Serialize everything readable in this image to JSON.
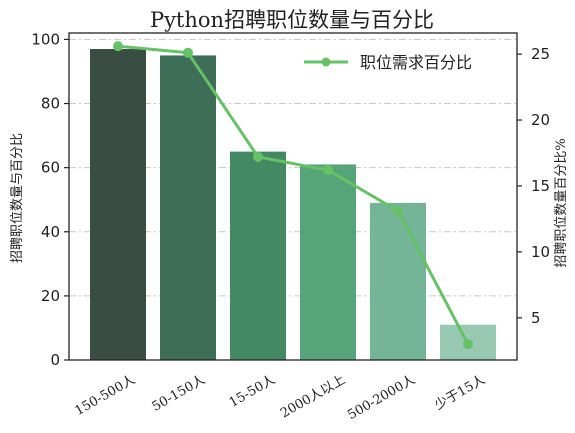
{
  "chart_data": {
    "type": "bar",
    "title": "Python招聘职位数量与百分比",
    "categories": [
      "150-500人",
      "50-150人",
      "15-50人",
      "2000人以上",
      "500-2000人",
      "少于15人"
    ],
    "bar_series": {
      "values": [
        97,
        95,
        65,
        61,
        49,
        11
      ],
      "colors": [
        "#3a4d43",
        "#3e6e57",
        "#438a62",
        "#56a478",
        "#74b497",
        "#97c9b3"
      ]
    },
    "line_series": {
      "name": "职位需求百分比",
      "values": [
        25.6,
        25.1,
        17.2,
        16.2,
        13.1,
        3.0
      ],
      "color": "#66c266"
    },
    "ylabel_left": "招聘职位数量与百分比",
    "ylabel_right": "招聘职位数量百分比%",
    "ylim_left": [
      0,
      102
    ],
    "yticks_left": [
      "0",
      "20",
      "40",
      "60",
      "80",
      "100"
    ],
    "ylim_right": [
      1.8,
      26.6
    ],
    "yticks_right": [
      "5",
      "10",
      "15",
      "20",
      "25"
    ],
    "grid": "horizontal dash-dot",
    "legend_position": "top-right"
  }
}
